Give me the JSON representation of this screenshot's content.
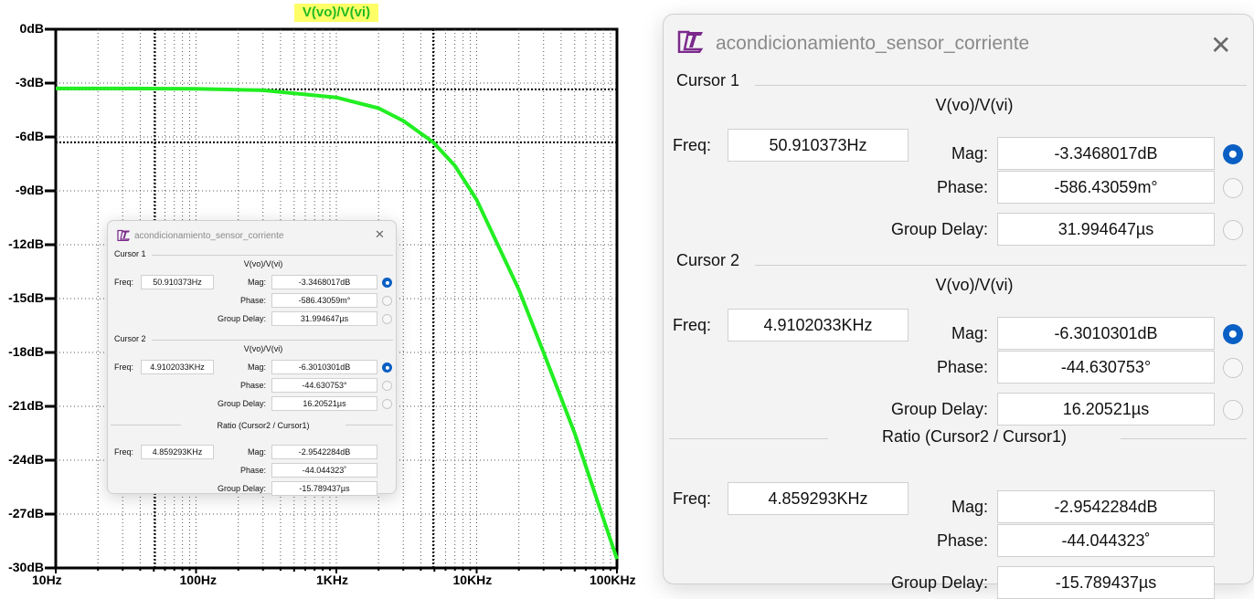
{
  "plot": {
    "trace_title": "V(vo)/V(vi)",
    "trace_color": "#22ee22",
    "y_ticks": [
      "0dB",
      "-3dB",
      "-6dB",
      "-9dB",
      "-12dB",
      "-15dB",
      "-18dB",
      "-21dB",
      "-24dB",
      "-27dB",
      "-30dB"
    ],
    "x_ticks": [
      "10Hz",
      "100Hz",
      "1KHz",
      "10KHz",
      "100KHz"
    ]
  },
  "chart_data": {
    "type": "line",
    "title": "V(vo)/V(vi)",
    "xscale": "log",
    "xlim": [
      10,
      100000
    ],
    "ylim": [
      -30,
      0
    ],
    "grid": true,
    "series": [
      {
        "name": "V(vo)/V(vi)",
        "x": [
          10,
          30,
          100,
          300,
          1000,
          2000,
          3000,
          4910.2033,
          7000,
          10000,
          20000,
          30000,
          50000,
          100000
        ],
        "y": [
          -3.3,
          -3.3,
          -3.32,
          -3.4,
          -3.8,
          -4.4,
          -5.1,
          -6.3,
          -7.6,
          -9.5,
          -14.5,
          -18,
          -22.5,
          -29.5
        ]
      }
    ],
    "cursors": [
      {
        "label": "Cursor 1",
        "freq_hz": 50.910373,
        "mag_db": -3.3468017
      },
      {
        "label": "Cursor 2",
        "freq_hz": 4910.2033,
        "mag_db": -6.3010301
      }
    ]
  },
  "dialog": {
    "title": "acondicionamiento_sensor_corriente",
    "close_glyph": "✕",
    "cursor1": {
      "group_label": "Cursor 1",
      "expr": "V(vo)/V(vi)",
      "freq_label": "Freq:",
      "freq": "50.910373Hz",
      "mag_label": "Mag:",
      "mag": "-3.3468017dB",
      "phase_label": "Phase:",
      "phase": "-586.43059m°",
      "gd_label": "Group Delay:",
      "gd": "31.994647µs"
    },
    "cursor2": {
      "group_label": "Cursor 2",
      "expr": "V(vo)/V(vi)",
      "freq_label": "Freq:",
      "freq": "4.9102033KHz",
      "mag_label": "Mag:",
      "mag": "-6.3010301dB",
      "phase_label": "Phase:",
      "phase": "-44.630753°",
      "gd_label": "Group Delay:",
      "gd": "16.20521µs"
    },
    "ratio": {
      "group_label": "Ratio (Cursor2 / Cursor1)",
      "freq_label": "Freq:",
      "freq": "4.859293KHz",
      "mag_label": "Mag:",
      "mag": "-2.9542284dB",
      "phase_label": "Phase:",
      "phase": "-44.044323˚",
      "gd_label": "Group Delay:",
      "gd": "-15.789437µs"
    },
    "selected_radio_color": "#0a5fc4"
  }
}
